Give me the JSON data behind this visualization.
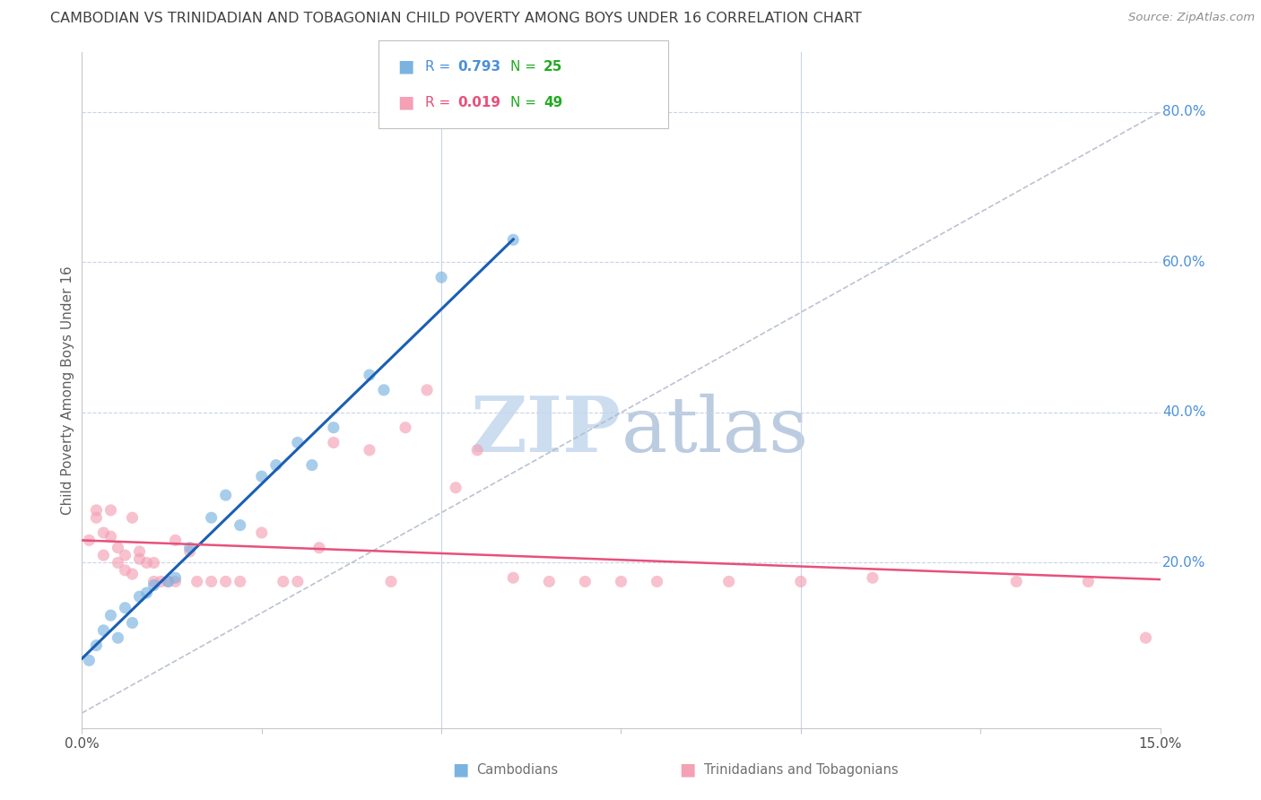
{
  "title": "CAMBODIAN VS TRINIDADIAN AND TOBAGONIAN CHILD POVERTY AMONG BOYS UNDER 16 CORRELATION CHART",
  "source": "Source: ZipAtlas.com",
  "ylabel": "Child Poverty Among Boys Under 16",
  "xlim": [
    0.0,
    0.15
  ],
  "ylim": [
    -0.02,
    0.88
  ],
  "right_ytick_labels": [
    "80.0%",
    "60.0%",
    "40.0%",
    "20.0%"
  ],
  "right_ytick_positions": [
    0.8,
    0.6,
    0.4,
    0.2
  ],
  "cambodian_color": "#7ab3e0",
  "trinidadian_color": "#f4a0b5",
  "trend_cambodian_color": "#1a5fb4",
  "trend_trinidadian_color": "#e8507a",
  "diagonal_color": "#b0b8c8",
  "background_color": "#ffffff",
  "grid_color": "#c8d4e8",
  "title_color": "#404040",
  "source_color": "#909090",
  "right_axis_color": "#4a90d9",
  "legend_R_color_cambodian": "#4a90d9",
  "legend_R_color_trinidadian": "#e8507a",
  "legend_N_color": "#22aa22",
  "watermark_zip_color": "#c8daf0",
  "watermark_atlas_color": "#c0cce0",
  "scatter_alpha": 0.65,
  "scatter_size": 90,
  "cambodian_x": [
    0.001,
    0.002,
    0.003,
    0.004,
    0.005,
    0.006,
    0.007,
    0.008,
    0.009,
    0.01,
    0.012,
    0.013,
    0.015,
    0.018,
    0.02,
    0.022,
    0.025,
    0.027,
    0.03,
    0.032,
    0.035,
    0.04,
    0.042,
    0.05,
    0.06
  ],
  "cambodian_y": [
    0.07,
    0.09,
    0.11,
    0.13,
    0.1,
    0.14,
    0.12,
    0.155,
    0.16,
    0.17,
    0.175,
    0.18,
    0.22,
    0.26,
    0.29,
    0.25,
    0.315,
    0.33,
    0.36,
    0.33,
    0.38,
    0.45,
    0.43,
    0.58,
    0.63
  ],
  "trinidadian_x": [
    0.001,
    0.002,
    0.002,
    0.003,
    0.003,
    0.004,
    0.004,
    0.005,
    0.005,
    0.006,
    0.006,
    0.007,
    0.007,
    0.008,
    0.008,
    0.009,
    0.01,
    0.01,
    0.011,
    0.012,
    0.013,
    0.013,
    0.015,
    0.016,
    0.018,
    0.02,
    0.022,
    0.025,
    0.028,
    0.03,
    0.033,
    0.035,
    0.04,
    0.043,
    0.045,
    0.048,
    0.052,
    0.055,
    0.06,
    0.065,
    0.07,
    0.075,
    0.08,
    0.09,
    0.1,
    0.11,
    0.13,
    0.14,
    0.148
  ],
  "trinidadian_y": [
    0.23,
    0.26,
    0.27,
    0.21,
    0.24,
    0.235,
    0.27,
    0.22,
    0.2,
    0.19,
    0.21,
    0.185,
    0.26,
    0.205,
    0.215,
    0.2,
    0.175,
    0.2,
    0.175,
    0.175,
    0.175,
    0.23,
    0.215,
    0.175,
    0.175,
    0.175,
    0.175,
    0.24,
    0.175,
    0.175,
    0.22,
    0.36,
    0.35,
    0.175,
    0.38,
    0.43,
    0.3,
    0.35,
    0.18,
    0.175,
    0.175,
    0.175,
    0.175,
    0.175,
    0.175,
    0.18,
    0.175,
    0.175,
    0.1
  ]
}
